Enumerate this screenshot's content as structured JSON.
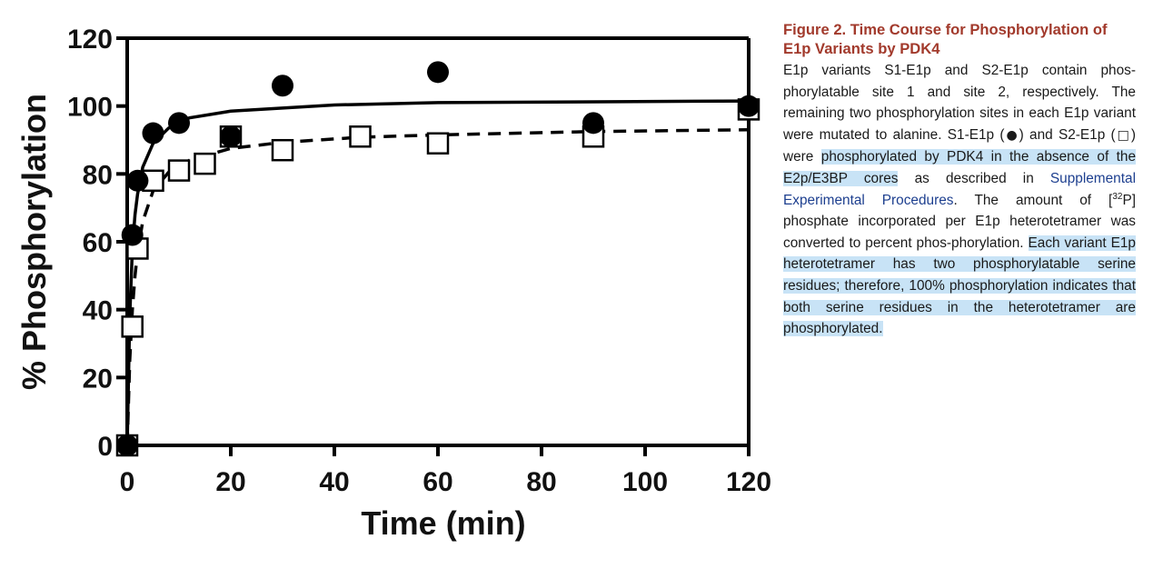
{
  "chart_data": {
    "type": "scatter",
    "title": "",
    "xlabel": "Time (min)",
    "ylabel": "% Phosphorylation",
    "xlim": [
      0,
      120
    ],
    "ylim": [
      0,
      120
    ],
    "xticks": [
      "0",
      "20",
      "40",
      "60",
      "80",
      "100",
      "120"
    ],
    "yticks": [
      "0",
      "20",
      "40",
      "60",
      "80",
      "100",
      "120"
    ],
    "grid": false,
    "legend": "none",
    "series": [
      {
        "marker": "filled-circle",
        "line": "solid",
        "color": "#000000",
        "points": [
          {
            "x": 0,
            "y": 0
          },
          {
            "x": 1,
            "y": 62
          },
          {
            "x": 2,
            "y": 78
          },
          {
            "x": 5,
            "y": 92
          },
          {
            "x": 10,
            "y": 95
          },
          {
            "x": 20,
            "y": 91
          },
          {
            "x": 30,
            "y": 106
          },
          {
            "x": 60,
            "y": 110
          },
          {
            "x": 90,
            "y": 95
          },
          {
            "x": 120,
            "y": 100
          }
        ],
        "fit": [
          {
            "x": 0,
            "y": 0
          },
          {
            "x": 0.5,
            "y": 38
          },
          {
            "x": 1,
            "y": 58
          },
          {
            "x": 1.5,
            "y": 68
          },
          {
            "x": 2,
            "y": 74
          },
          {
            "x": 3,
            "y": 82
          },
          {
            "x": 5,
            "y": 89
          },
          {
            "x": 8,
            "y": 93.5
          },
          {
            "x": 12,
            "y": 96.5
          },
          {
            "x": 20,
            "y": 98.5
          },
          {
            "x": 40,
            "y": 100.3
          },
          {
            "x": 60,
            "y": 101
          },
          {
            "x": 120,
            "y": 101.5
          }
        ]
      },
      {
        "marker": "open-square",
        "line": "dashed",
        "color": "#000000",
        "points": [
          {
            "x": 0,
            "y": 0
          },
          {
            "x": 1,
            "y": 35
          },
          {
            "x": 2,
            "y": 58
          },
          {
            "x": 5,
            "y": 78
          },
          {
            "x": 10,
            "y": 81
          },
          {
            "x": 15,
            "y": 83
          },
          {
            "x": 20,
            "y": 91
          },
          {
            "x": 30,
            "y": 87
          },
          {
            "x": 45,
            "y": 91
          },
          {
            "x": 60,
            "y": 89
          },
          {
            "x": 90,
            "y": 91
          },
          {
            "x": 120,
            "y": 99
          }
        ],
        "fit": [
          {
            "x": 0,
            "y": 0
          },
          {
            "x": 0.5,
            "y": 25
          },
          {
            "x": 1,
            "y": 40
          },
          {
            "x": 1.5,
            "y": 50
          },
          {
            "x": 2,
            "y": 57
          },
          {
            "x": 3,
            "y": 66
          },
          {
            "x": 5,
            "y": 75
          },
          {
            "x": 8,
            "y": 80.5
          },
          {
            "x": 12,
            "y": 84
          },
          {
            "x": 20,
            "y": 87.5
          },
          {
            "x": 30,
            "y": 89.3
          },
          {
            "x": 45,
            "y": 90.8
          },
          {
            "x": 60,
            "y": 91.5
          },
          {
            "x": 90,
            "y": 92.5
          },
          {
            "x": 120,
            "y": 93
          }
        ]
      }
    ]
  },
  "caption": {
    "title": "Figure 2. Time Course for Phosphorylation of E1p Variants by PDK4",
    "t1": "E1p variants S1-E1p and S2-E1p contain phos-phorylatable site 1 and site 2, respectively. The remaining two phosphorylation sites in each E1p variant were mutated to alanine. S1-E1p (",
    "sym1": "●",
    "t2": ") and S2-E1p (",
    "sym2": "□",
    "t3": ") were ",
    "h1": "phosphorylated by PDK4 in the absence of the E2p/E3BP cores",
    "t4": " as described in ",
    "link": "Supplemental Experimental Procedures",
    "t5": ". The amount of [",
    "sup": "32",
    "t6": "P] phosphate incorporated per E1p heterotetramer was converted to percent phos-phorylation. ",
    "h2": "Each variant E1p heterotetramer has two phosphorylatable serine residues; therefore, 100% phosphorylation indicates that both serine residues in the heterotetramer are phosphorylated."
  },
  "colors": {
    "caption_title": "#a23a2c",
    "highlight": "#c8e3f6",
    "link": "#1d3f8f"
  }
}
